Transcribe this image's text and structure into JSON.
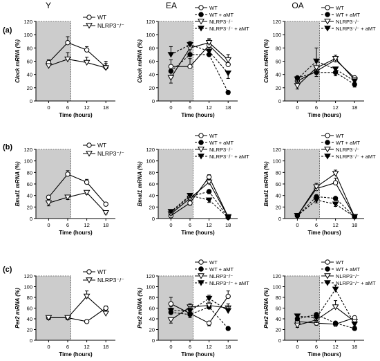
{
  "column_headers": [
    "Y",
    "EA",
    "OA"
  ],
  "row_labels": [
    "(a)",
    "(b)",
    "(c)"
  ],
  "colors": {
    "shade": "#cccccc",
    "line": "#000000"
  },
  "legend_labels": {
    "two": [
      "WT",
      "NLRP3⁻/⁻"
    ],
    "four": [
      "WT",
      "WT + aMT",
      "NLRP3⁻/⁻",
      "NLRP3⁻/⁻ + aMT"
    ]
  },
  "chart_data": [
    {
      "id": "a-Y",
      "type": "line",
      "ylabel": "Clock mRNA (%)",
      "xlabel": "Time (hours)",
      "x": [
        0,
        6,
        12,
        18
      ],
      "xlim": [
        -4,
        21
      ],
      "ylim": [
        0,
        120
      ],
      "yticks": [
        0,
        20,
        40,
        60,
        80,
        100,
        120
      ],
      "shaded_x": [
        -4,
        7
      ],
      "legend": "top-right",
      "series": [
        {
          "name": "WT",
          "values": [
            58,
            88,
            77,
            51
          ],
          "errors": [
            4,
            9,
            5,
            6
          ]
        },
        {
          "name": "NLRP3⁻/⁻",
          "values": [
            53,
            63,
            58,
            50
          ],
          "errors": [
            3,
            10,
            8,
            10
          ]
        }
      ]
    },
    {
      "id": "a-EA",
      "type": "line",
      "ylabel": "Clock mRNA (%)",
      "xlabel": "Time (hours)",
      "x": [
        0,
        6,
        12,
        18
      ],
      "xlim": [
        -4,
        21
      ],
      "ylim": [
        0,
        120
      ],
      "yticks": [
        0,
        20,
        40,
        60,
        80,
        100,
        120
      ],
      "shaded_x": [
        -4,
        7
      ],
      "legend": "top",
      "series": [
        {
          "name": "WT",
          "values": [
            52,
            52,
            84,
            55
          ],
          "errors": [
            10,
            12,
            8,
            10
          ]
        },
        {
          "name": "WT + aMT",
          "values": [
            45,
            70,
            70,
            13
          ],
          "errors": [
            10,
            8,
            5,
            3
          ]
        },
        {
          "name": "NLRP3⁻/⁻",
          "values": [
            35,
            80,
            88,
            62
          ],
          "errors": [
            8,
            6,
            6,
            8
          ]
        },
        {
          "name": "NLRP3⁻/⁻ + aMT",
          "values": [
            70,
            85,
            75,
            42
          ],
          "errors": [
            12,
            5,
            6,
            8
          ]
        }
      ]
    },
    {
      "id": "a-OA",
      "type": "line",
      "ylabel": "Clock mRNA (%)",
      "xlabel": "Time (hours)",
      "x": [
        0,
        6,
        12,
        18
      ],
      "xlim": [
        -4,
        21
      ],
      "ylim": [
        0,
        120
      ],
      "yticks": [
        0,
        20,
        40,
        60,
        80,
        100,
        120
      ],
      "shaded_x": [
        -4,
        7
      ],
      "legend": "top",
      "series": [
        {
          "name": "WT",
          "values": [
            30,
            45,
            62,
            35
          ],
          "errors": [
            5,
            8,
            5,
            5
          ]
        },
        {
          "name": "WT + aMT",
          "values": [
            35,
            43,
            43,
            25
          ],
          "errors": [
            5,
            6,
            5,
            4
          ]
        },
        {
          "name": "NLRP3⁻/⁻",
          "values": [
            23,
            50,
            64,
            32
          ],
          "errors": [
            5,
            10,
            5,
            5
          ]
        },
        {
          "name": "NLRP3⁻/⁻ + aMT",
          "values": [
            33,
            60,
            48,
            30
          ],
          "errors": [
            5,
            20,
            6,
            5
          ]
        }
      ]
    },
    {
      "id": "b-Y",
      "type": "line",
      "ylabel": "Bmal1 mRNA (%)",
      "xlabel": "Time (hours)",
      "x": [
        0,
        6,
        12,
        18
      ],
      "xlim": [
        -4,
        21
      ],
      "ylim": [
        0,
        120
      ],
      "yticks": [
        0,
        20,
        40,
        60,
        80,
        100,
        120
      ],
      "shaded_x": [
        -4,
        7
      ],
      "legend": "top-right",
      "series": [
        {
          "name": "WT",
          "values": [
            37,
            77,
            63,
            25
          ],
          "errors": [
            4,
            6,
            5,
            3
          ]
        },
        {
          "name": "NLRP3⁻/⁻",
          "values": [
            27,
            37,
            45,
            10
          ],
          "errors": [
            5,
            4,
            3,
            2
          ]
        }
      ]
    },
    {
      "id": "b-EA",
      "type": "line",
      "ylabel": "Bmal1 mRNA (%)",
      "xlabel": "Time (hours)",
      "x": [
        0,
        6,
        12,
        18
      ],
      "xlim": [
        -4,
        21
      ],
      "ylim": [
        0,
        120
      ],
      "yticks": [
        0,
        20,
        40,
        60,
        80,
        100,
        120
      ],
      "shaded_x": [
        -4,
        7
      ],
      "legend": "top-right",
      "series": [
        {
          "name": "WT",
          "values": [
            5,
            27,
            72,
            3
          ],
          "errors": [
            2,
            4,
            4,
            1
          ]
        },
        {
          "name": "WT + aMT",
          "values": [
            10,
            38,
            47,
            2
          ],
          "errors": [
            2,
            4,
            4,
            1
          ]
        },
        {
          "name": "NLRP3⁻/⁻",
          "values": [
            8,
            35,
            63,
            3
          ],
          "errors": [
            2,
            4,
            5,
            1
          ]
        },
        {
          "name": "NLRP3⁻/⁻ + aMT",
          "values": [
            12,
            40,
            32,
            2
          ],
          "errors": [
            2,
            4,
            4,
            1
          ]
        }
      ]
    },
    {
      "id": "b-OA",
      "type": "line",
      "ylabel": "Bmal1 mRNA (%)",
      "xlabel": "Time (hours)",
      "x": [
        0,
        6,
        12,
        18
      ],
      "xlim": [
        -4,
        21
      ],
      "ylim": [
        0,
        120
      ],
      "yticks": [
        0,
        20,
        40,
        60,
        80,
        100,
        120
      ],
      "shaded_x": [
        -4,
        7
      ],
      "legend": "top-right",
      "series": [
        {
          "name": "WT",
          "values": [
            5,
            52,
            62,
            3
          ],
          "errors": [
            2,
            5,
            8,
            1
          ]
        },
        {
          "name": "WT + aMT",
          "values": [
            5,
            38,
            35,
            3
          ],
          "errors": [
            2,
            5,
            4,
            1
          ]
        },
        {
          "name": "NLRP3⁻/⁻",
          "values": [
            5,
            55,
            78,
            3
          ],
          "errors": [
            2,
            6,
            6,
            1
          ]
        },
        {
          "name": "NLRP3⁻/⁻ + aMT",
          "values": [
            5,
            32,
            25,
            3
          ],
          "errors": [
            2,
            5,
            4,
            1
          ]
        }
      ]
    },
    {
      "id": "c-Y",
      "type": "line",
      "ylabel": "Per2 mRNA (%)",
      "xlabel": "Time (hours)",
      "x": [
        0,
        6,
        12,
        18
      ],
      "xlim": [
        -4,
        21
      ],
      "ylim": [
        0,
        120
      ],
      "yticks": [
        0,
        20,
        40,
        60,
        80,
        100,
        120
      ],
      "shaded_x": [
        -4,
        7
      ],
      "legend": "top-right",
      "series": [
        {
          "name": "WT",
          "values": [
            42,
            42,
            35,
            60
          ],
          "errors": [
            3,
            3,
            3,
            4
          ]
        },
        {
          "name": "NLRP3⁻/⁻",
          "values": [
            42,
            42,
            82,
            50
          ],
          "errors": [
            3,
            3,
            10,
            5
          ]
        }
      ]
    },
    {
      "id": "c-EA",
      "type": "line",
      "ylabel": "Per2 mRNA (%)",
      "xlabel": "Time (hours)",
      "x": [
        0,
        6,
        12,
        18
      ],
      "xlim": [
        -4,
        21
      ],
      "ylim": [
        0,
        120
      ],
      "yticks": [
        0,
        20,
        40,
        60,
        80,
        100,
        120
      ],
      "shaded_x": [
        -4,
        7
      ],
      "legend": "top-right",
      "series": [
        {
          "name": "WT",
          "values": [
            68,
            50,
            32,
            82
          ],
          "errors": [
            12,
            8,
            5,
            10
          ]
        },
        {
          "name": "WT + aMT",
          "values": [
            52,
            48,
            62,
            22
          ],
          "errors": [
            8,
            6,
            6,
            3
          ]
        },
        {
          "name": "NLRP3⁻/⁻",
          "values": [
            38,
            62,
            65,
            60
          ],
          "errors": [
            6,
            6,
            6,
            8
          ]
        },
        {
          "name": "NLRP3⁻/⁻ + aMT",
          "values": [
            55,
            55,
            78,
            55
          ],
          "errors": [
            8,
            8,
            6,
            8
          ]
        }
      ]
    },
    {
      "id": "c-OA",
      "type": "line",
      "ylabel": "Per2 mRNA (%)",
      "xlabel": "Time (hours)",
      "x": [
        0,
        6,
        12,
        18
      ],
      "xlim": [
        -4,
        21
      ],
      "ylim": [
        0,
        120
      ],
      "yticks": [
        0,
        20,
        40,
        60,
        80,
        100,
        120
      ],
      "shaded_x": [
        -4,
        7
      ],
      "legend": "top-right",
      "series": [
        {
          "name": "WT",
          "values": [
            35,
            32,
            30,
            42
          ],
          "errors": [
            4,
            4,
            4,
            4
          ]
        },
        {
          "name": "WT + aMT",
          "values": [
            40,
            48,
            32,
            22
          ],
          "errors": [
            4,
            8,
            4,
            3
          ]
        },
        {
          "name": "NLRP3⁻/⁻",
          "values": [
            28,
            38,
            62,
            35
          ],
          "errors": [
            4,
            5,
            12,
            4
          ]
        },
        {
          "name": "NLRP3⁻/⁻ + aMT",
          "values": [
            45,
            42,
            95,
            30
          ],
          "errors": [
            4,
            5,
            8,
            4
          ]
        }
      ]
    }
  ]
}
